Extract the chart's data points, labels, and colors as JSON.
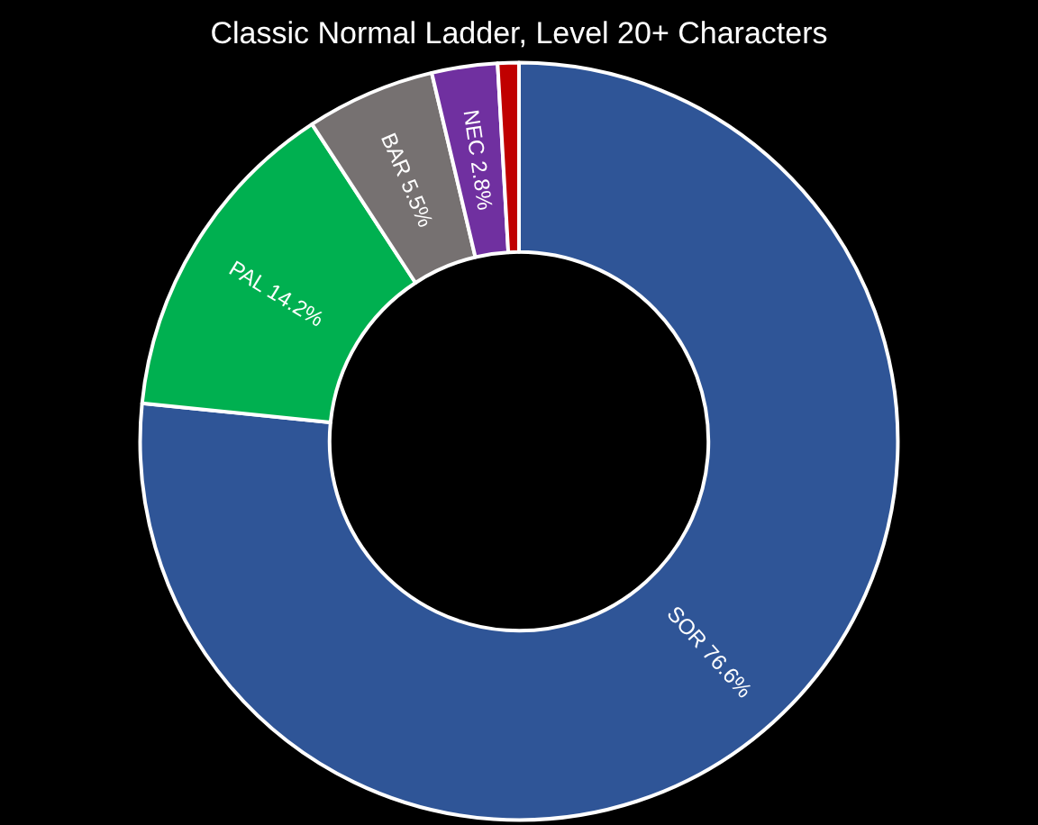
{
  "chart_data": {
    "type": "donut",
    "title": "Classic Normal Ladder, Level 20+ Characters",
    "categories": [
      "SOR",
      "PAL",
      "BAR",
      "NEC",
      null
    ],
    "values": [
      76.6,
      14.2,
      5.5,
      2.8,
      0.9
    ],
    "colors": [
      "#2f5597",
      "#00b050",
      "#767171",
      "#7030a0",
      "#c00000"
    ],
    "value_labels": [
      "76.6%",
      "14.2%",
      "5.5%",
      "2.8%",
      null
    ]
  }
}
